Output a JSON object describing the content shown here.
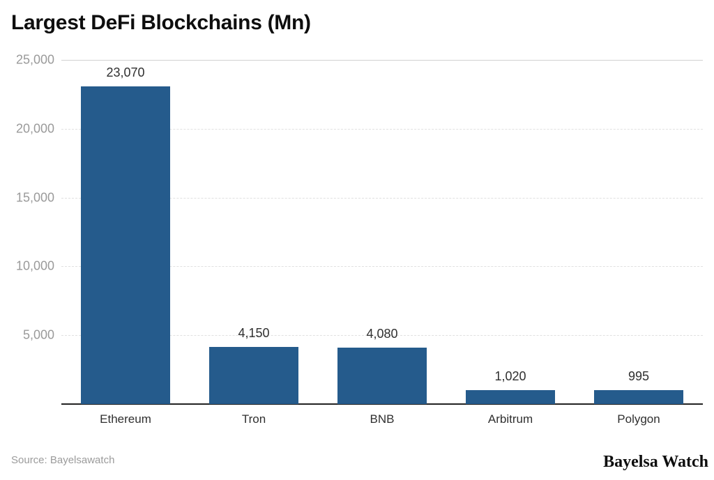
{
  "title": "Largest DeFi Blockchains (Mn)",
  "footer": {
    "source": "Source: Bayelsawatch",
    "brand": "Bayelsa Watch"
  },
  "colors": {
    "bar": "#255b8c",
    "grid_dashed": "#e0e0e0",
    "grid_top_solid": "#d2d2d2",
    "axis_line": "#222222",
    "tick_text": "#9a9a9a",
    "label_text": "#2f2f2f"
  },
  "chart_data": {
    "type": "bar",
    "title": "Largest DeFi Blockchains (Mn)",
    "categories": [
      "Ethereum",
      "Tron",
      "BNB",
      "Arbitrum",
      "Polygon"
    ],
    "values": [
      23070,
      4150,
      4080,
      1020,
      995
    ],
    "value_labels": [
      "23,070",
      "4,150",
      "4,080",
      "1,020",
      "995"
    ],
    "yticks": [
      25000,
      20000,
      15000,
      10000,
      5000
    ],
    "ytick_labels": [
      "25,000",
      "20,000",
      "15,000",
      "10,000",
      "5,000"
    ],
    "ylim": [
      0,
      25000
    ],
    "xlabel": "",
    "ylabel": "",
    "grid": true,
    "legend_position": "none",
    "bar_color": "#255b8c"
  }
}
